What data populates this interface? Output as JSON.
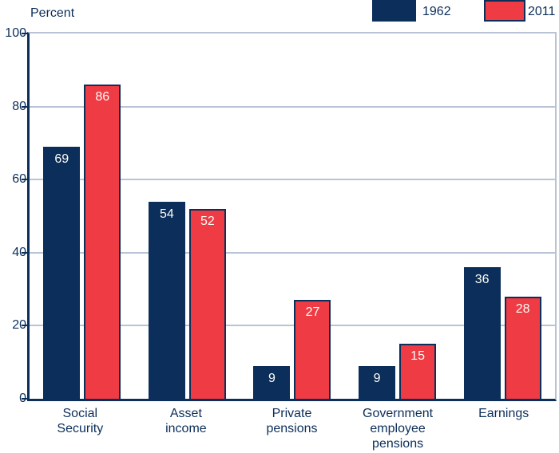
{
  "colors": {
    "navy": "#0b2e5a",
    "red": "#ef3b44",
    "gridline": "#b8c3d6",
    "axis": "#0b2e5a",
    "text": "#0b2e5a",
    "bar_value_text": "#fffdf6",
    "background": "#ffffff"
  },
  "legend": {
    "items": [
      {
        "label": "1962",
        "color": "#0b2e5a",
        "border": "#0b2e5a"
      },
      {
        "label": "2011",
        "color": "#ef3b44",
        "border": "#0b2e5a"
      }
    ]
  },
  "chart_data": {
    "type": "bar",
    "title": "Percent",
    "ylabel": "Percent",
    "categories": [
      "Social Security",
      "Asset income",
      "Private pensions",
      "Government employee pensions",
      "Earnings"
    ],
    "categories_display": [
      [
        "Social",
        "Security"
      ],
      [
        "Asset",
        "income"
      ],
      [
        "Private",
        "pensions"
      ],
      [
        "Government",
        "employee",
        "pensions"
      ],
      [
        "Earnings"
      ]
    ],
    "series": [
      {
        "name": "1962",
        "color": "#0b2e5a",
        "border": "#0b2e5a",
        "values": [
          69,
          54,
          9,
          9,
          36
        ]
      },
      {
        "name": "2011",
        "color": "#ef3b44",
        "border": "#0b2e5a",
        "values": [
          86,
          52,
          27,
          15,
          28
        ]
      }
    ],
    "ylim": [
      0,
      100
    ],
    "yticks": [
      0,
      20,
      40,
      60,
      80,
      100
    ],
    "grid": true,
    "value_labels": true,
    "legend_position": "top-right"
  }
}
